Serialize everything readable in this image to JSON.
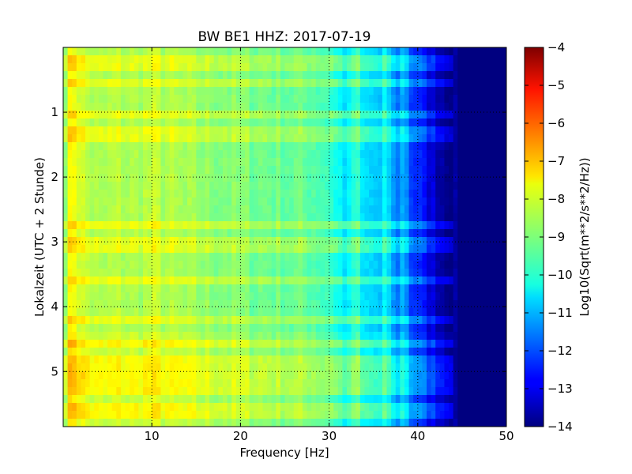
{
  "chart_data": {
    "type": "heatmap",
    "title": "BW BE1 HHZ: 2017-07-19",
    "xlabel": "Frequency [Hz]",
    "ylabel": "Lokalzeit (UTC + 2 Stunde)",
    "xlim": [
      0,
      50
    ],
    "ylim": [
      5.85,
      0
    ],
    "x_ticks": [
      10,
      20,
      30,
      40,
      50
    ],
    "y_ticks": [
      1,
      2,
      3,
      4,
      5
    ],
    "y_inverted": true,
    "grid": true,
    "colormap": "jet",
    "colorbar": {
      "label": "Log10(Sqrt(m**2/s**2/Hz))",
      "range": [
        -14,
        -4
      ],
      "ticks": [
        -4,
        -5,
        -6,
        -7,
        -8,
        -9,
        -10,
        -11,
        -12,
        -13,
        -14
      ]
    },
    "spectrum_profile": {
      "frequency_hz": [
        0,
        1,
        2,
        4,
        6,
        8,
        10,
        12,
        15,
        18,
        20,
        22,
        25,
        28,
        30,
        31,
        32,
        33,
        34,
        35,
        36,
        37,
        38,
        39,
        40,
        41,
        42,
        43,
        44,
        45,
        46,
        48,
        50
      ],
      "level": [
        -9.0,
        -7.6,
        -8.2,
        -8.7,
        -8.5,
        -8.6,
        -8.4,
        -8.6,
        -8.8,
        -8.9,
        -9.0,
        -9.1,
        -9.2,
        -9.3,
        -9.6,
        -10.2,
        -10.5,
        -10.5,
        -10.6,
        -10.7,
        -11.0,
        -11.3,
        -11.6,
        -12.0,
        -12.4,
        -12.9,
        -13.3,
        -13.7,
        -13.9,
        -14.0,
        -14.0,
        -14.0,
        -14.0
      ]
    },
    "horizontal_bands_hours": [
      0.25,
      0.55,
      1.0,
      1.25,
      1.45,
      2.75,
      3.05,
      3.6,
      4.2,
      4.55,
      4.6,
      4.8,
      4.85,
      5.0,
      5.15,
      5.3,
      5.5,
      5.6,
      5.7
    ],
    "vertical_lines_hz": [
      33.0,
      36.5,
      38.5
    ]
  }
}
